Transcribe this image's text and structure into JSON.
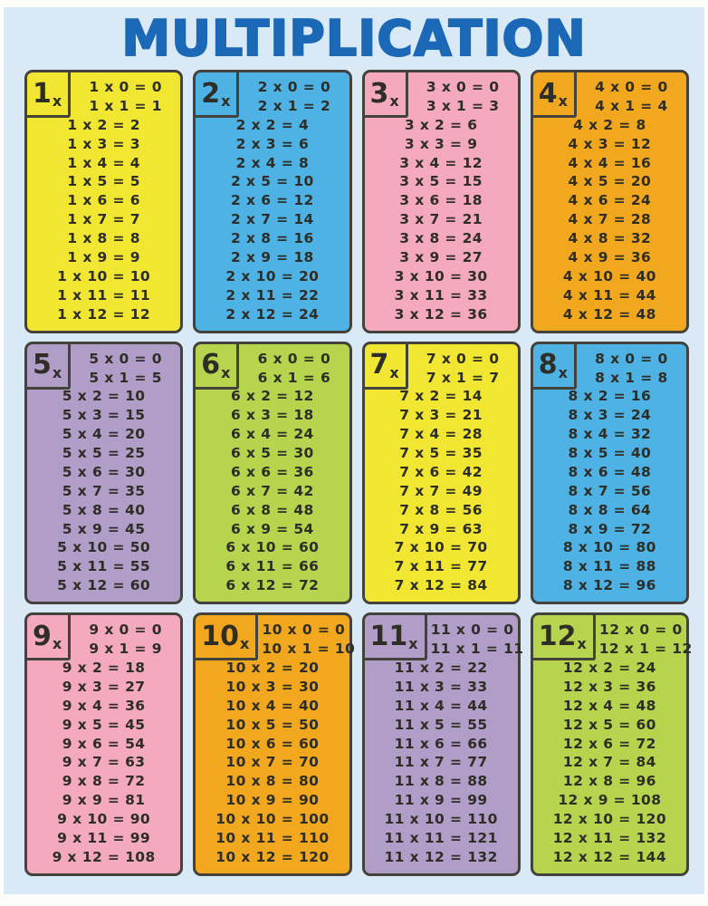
{
  "title": "MULTIPLICATION",
  "colors": {
    "page_margin": "#fdfdfc",
    "background": "#d9e9f6",
    "title": "#1a68b6",
    "card_border": "#43433b",
    "text": "#2e2e27",
    "yellow": "#f1e733",
    "blue": "#4fb2e5",
    "pink": "#f4a9bf",
    "orange": "#f1a81f",
    "purple": "#b09dc8",
    "green": "#b7d44f"
  },
  "cards": [
    {
      "tab_number": "1",
      "tab_suffix": "x",
      "color": "#f1e733",
      "equations": [
        "1 x 0 = 0",
        "1 x 1 = 1",
        "1 x 2 = 2",
        "1 x 3 = 3",
        "1 x 4 = 4",
        "1 x 5 = 5",
        "1 x 6 = 6",
        "1 x 7 = 7",
        "1 x 8 = 8",
        "1 x 9 = 9",
        "1 x 10 = 10",
        "1 x 11 = 11",
        "1 x 12 = 12"
      ]
    },
    {
      "tab_number": "2",
      "tab_suffix": "x",
      "color": "#4fb2e5",
      "equations": [
        "2 x 0 = 0",
        "2 x 1 = 2",
        "2 x 2 = 4",
        "2 x 3 = 6",
        "2 x 4 = 8",
        "2 x 5 = 10",
        "2 x 6 = 12",
        "2 x 7 = 14",
        "2 x 8 = 16",
        "2 x 9 = 18",
        "2 x 10 = 20",
        "2 x 11 = 22",
        "2 x 12 = 24"
      ]
    },
    {
      "tab_number": "3",
      "tab_suffix": "x",
      "color": "#f4a9bf",
      "equations": [
        "3 x 0 = 0",
        "3 x 1 = 3",
        "3 x 2 = 6",
        "3 x 3 = 9",
        "3 x 4 = 12",
        "3 x 5 = 15",
        "3 x 6 = 18",
        "3 x 7 = 21",
        "3 x 8 = 24",
        "3 x 9 = 27",
        "3 x 10 = 30",
        "3 x 11 = 33",
        "3 x 12 = 36"
      ]
    },
    {
      "tab_number": "4",
      "tab_suffix": "x",
      "color": "#f1a81f",
      "equations": [
        "4 x 0 = 0",
        "4 x 1 = 4",
        "4 x 2 = 8",
        "4 x 3 = 12",
        "4 x 4 = 16",
        "4 x 5 = 20",
        "4 x 6 = 24",
        "4 x 7 = 28",
        "4 x 8 = 32",
        "4 x 9 = 36",
        "4 x 10 = 40",
        "4 x 11 = 44",
        "4 x 12 = 48"
      ]
    },
    {
      "tab_number": "5",
      "tab_suffix": "x",
      "color": "#b09dc8",
      "equations": [
        "5 x 0 = 0",
        "5 x 1 = 5",
        "5 x 2 = 10",
        "5 x 3 = 15",
        "5 x 4 = 20",
        "5 x 5 = 25",
        "5 x 6 = 30",
        "5 x 7 = 35",
        "5 x 8 = 40",
        "5 x 9 = 45",
        "5 x 10 = 50",
        "5 x 11 = 55",
        "5 x 12 = 60"
      ]
    },
    {
      "tab_number": "6",
      "tab_suffix": "x",
      "color": "#b7d44f",
      "equations": [
        "6 x 0 = 0",
        "6 x 1 = 6",
        "6 x 2 = 12",
        "6 x 3 = 18",
        "6 x 4 = 24",
        "6 x 5 = 30",
        "6 x 6 = 36",
        "6 x 7 = 42",
        "6 x 8 = 48",
        "6 x 9 = 54",
        "6 x 10 = 60",
        "6 x 11 = 66",
        "6 x 12 = 72"
      ]
    },
    {
      "tab_number": "7",
      "tab_suffix": "x",
      "color": "#f1e733",
      "equations": [
        "7 x 0 = 0",
        "7 x 1 = 7",
        "7 x 2 = 14",
        "7 x 3 = 21",
        "7 x 4 = 28",
        "7 x 5 = 35",
        "7 x 6 = 42",
        "7 x 7 = 49",
        "7 x 8 = 56",
        "7 x 9 = 63",
        "7 x 10 = 70",
        "7 x 11 = 77",
        "7 x 12 = 84"
      ]
    },
    {
      "tab_number": "8",
      "tab_suffix": "x",
      "color": "#4fb2e5",
      "equations": [
        "8 x 0 = 0",
        "8 x 1 = 8",
        "8 x 2 = 16",
        "8 x 3 = 24",
        "8 x 4 = 32",
        "8 x 5 = 40",
        "8 x 6 = 48",
        "8 x 7 = 56",
        "8 x 8 = 64",
        "8 x 9 = 72",
        "8 x 10 = 80",
        "8 x 11 = 88",
        "8 x 12 = 96"
      ]
    },
    {
      "tab_number": "9",
      "tab_suffix": "x",
      "color": "#f4a9bf",
      "equations": [
        "9 x 0 = 0",
        "9 x 1 = 9",
        "9 x 2 = 18",
        "9 x 3 = 27",
        "9 x 4 = 36",
        "9 x 5 = 45",
        "9 x 6 = 54",
        "9 x 7 = 63",
        "9 x 8 = 72",
        "9 x 9 = 81",
        "9 x 10 = 90",
        "9 x 11 = 99",
        "9 x 12 = 108"
      ]
    },
    {
      "tab_number": "10",
      "tab_suffix": "x",
      "color": "#f1a81f",
      "equations": [
        "10 x 0 = 0",
        "10 x 1 = 10",
        "10 x 2 = 20",
        "10 x 3 = 30",
        "10 x 4 = 40",
        "10 x 5 = 50",
        "10 x 6 = 60",
        "10 x 7 = 70",
        "10 x 8 = 80",
        "10 x 9 = 90",
        "10 x 10 = 100",
        "10 x 11 = 110",
        "10 x 12 = 120"
      ]
    },
    {
      "tab_number": "11",
      "tab_suffix": "x",
      "color": "#b09dc8",
      "equations": [
        "11 x 0 = 0",
        "11 x 1 = 11",
        "11 x 2 = 22",
        "11 x 3 = 33",
        "11 x 4 = 44",
        "11 x 5 = 55",
        "11 x 6 = 66",
        "11 x 7 = 77",
        "11 x 8 = 88",
        "11 x 9 = 99",
        "11 x 10 = 110",
        "11 x 11 = 121",
        "11 x 12 = 132"
      ]
    },
    {
      "tab_number": "12",
      "tab_suffix": "x",
      "color": "#b7d44f",
      "equations": [
        "12 x 0 = 0",
        "12 x 1 = 12",
        "12 x 2 = 24",
        "12 x 3 = 36",
        "12 x 4 = 48",
        "12 x 5 = 60",
        "12 x 6 = 72",
        "12 x 7 = 84",
        "12 x 8 = 96",
        "12 x 9 = 108",
        "12 x 10 = 120",
        "12 x 11 = 132",
        "12 x 12 = 144"
      ]
    }
  ]
}
